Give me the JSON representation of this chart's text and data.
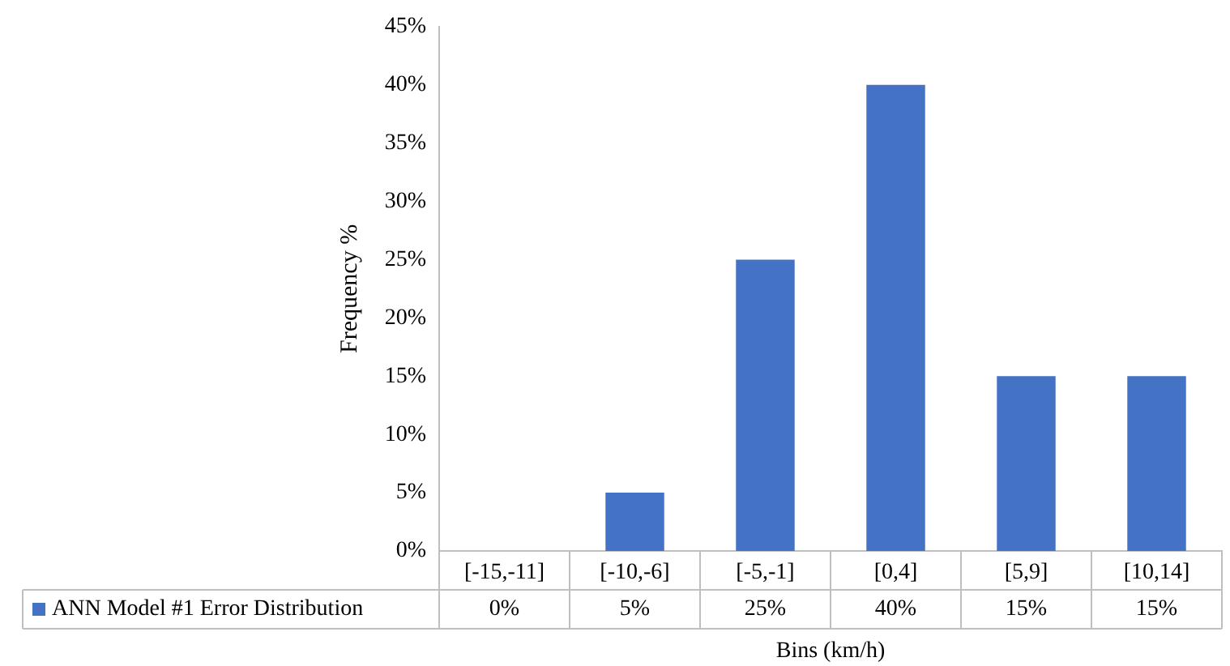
{
  "chart_data": {
    "type": "bar",
    "xlabel": "Bins (km/h)",
    "ylabel": "Frequency %",
    "categories": [
      "[-15,-11]",
      "[-10,-6]",
      "[-5,-1]",
      "[0,4]",
      "[5,9]",
      "[10,14]"
    ],
    "series": [
      {
        "name": "ANN Model #1 Error Distribution",
        "color": "#4472c4",
        "values": [
          0,
          5,
          25,
          40,
          15,
          15
        ],
        "value_labels": [
          "0%",
          "5%",
          "25%",
          "40%",
          "15%",
          "15%"
        ]
      }
    ],
    "ylim": [
      0,
      45
    ],
    "yticks": [
      {
        "value": 0,
        "label": "0%"
      },
      {
        "value": 5,
        "label": "5%"
      },
      {
        "value": 10,
        "label": "10%"
      },
      {
        "value": 15,
        "label": "15%"
      },
      {
        "value": 20,
        "label": "20%"
      },
      {
        "value": 25,
        "label": "25%"
      },
      {
        "value": 30,
        "label": "30%"
      },
      {
        "value": 35,
        "label": "35%"
      },
      {
        "value": 40,
        "label": "40%"
      },
      {
        "value": 45,
        "label": "45%"
      }
    ],
    "grid": false,
    "legend": "bottom left"
  }
}
